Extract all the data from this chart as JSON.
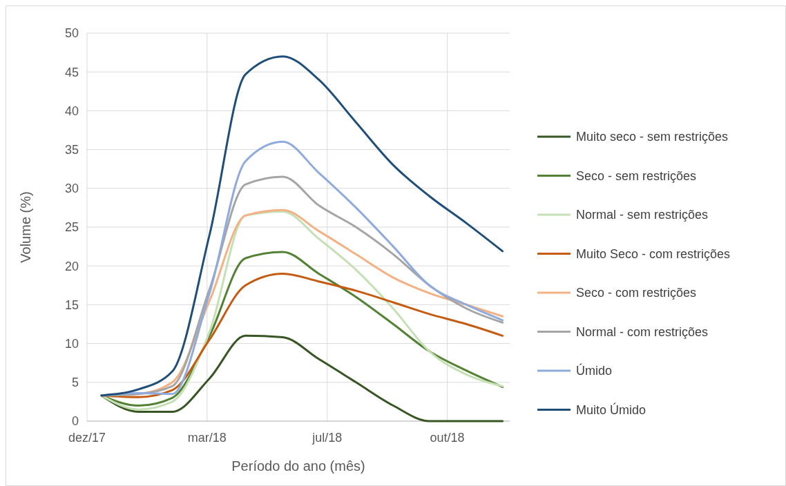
{
  "chart_data": {
    "type": "line",
    "xlabel": "Período do ano (mês)",
    "ylabel": "Volume (%)",
    "x": [
      "2018-01-01",
      "2018-02-01",
      "2018-03-01",
      "2018-04-01",
      "2018-05-01",
      "2018-06-01",
      "2018-07-01",
      "2018-08-01",
      "2018-09-01",
      "2018-10-01",
      "2018-11-01",
      "2018-12-01"
    ],
    "xlim": [
      "2017-12-20",
      "2018-12-07"
    ],
    "xticks": [
      {
        "value": "2017-12-20",
        "label": "dez/17"
      },
      {
        "value": "2018-03-30",
        "label": "mar/18"
      },
      {
        "value": "2018-07-08",
        "label": "jul/18"
      },
      {
        "value": "2018-10-16",
        "label": "out/18"
      }
    ],
    "ylim": [
      0,
      50
    ],
    "yticks": [
      0,
      5,
      10,
      15,
      20,
      25,
      30,
      35,
      40,
      45,
      50
    ],
    "grid": true,
    "legend": "right",
    "marker": "none",
    "line_style": "solid",
    "series": [
      {
        "name": "Muito seco - sem restrições",
        "color": "#375623",
        "values": [
          3.3,
          1.2,
          1.2,
          5.5,
          11,
          10.8,
          8,
          5,
          2,
          0,
          0,
          0
        ]
      },
      {
        "name": "Seco - sem restrições",
        "color": "#548235",
        "values": [
          3.3,
          2,
          3,
          11,
          21,
          21.8,
          19,
          16,
          12.5,
          9,
          6.5,
          4.4
        ]
      },
      {
        "name": "Normal - sem restrições",
        "color": "#c5e0b4",
        "values": [
          3.3,
          1.5,
          2.5,
          11.5,
          26.5,
          27,
          23.5,
          19.5,
          14.5,
          9,
          6,
          4.5
        ]
      },
      {
        "name": "Muito Seco - com restrições",
        "color": "#c55a11",
        "values": [
          3.3,
          3.1,
          4,
          10.5,
          17.5,
          19,
          18,
          16.8,
          15.3,
          13.8,
          12.5,
          11
        ]
      },
      {
        "name": "Seco - com restrições",
        "color": "#f4b183",
        "values": [
          3.3,
          3.5,
          5,
          15.5,
          26.5,
          27.2,
          24.5,
          21.5,
          18.5,
          16.5,
          15,
          13.5
        ]
      },
      {
        "name": "Normal - com restrições",
        "color": "#a5a5a5",
        "values": [
          3.3,
          3.5,
          4.5,
          17,
          30.5,
          31.5,
          27.8,
          25,
          21.5,
          17.5,
          14.5,
          12.7
        ]
      },
      {
        "name": "Úmido",
        "color": "#8faadc",
        "values": [
          3.3,
          3.6,
          3.5,
          16.5,
          33.5,
          36,
          32,
          27.5,
          22.5,
          17.5,
          15,
          13
        ]
      },
      {
        "name": "Muito Úmido",
        "color": "#1f4e79",
        "values": [
          3.3,
          4.1,
          6.4,
          24,
          44.7,
          47,
          44,
          38.5,
          33,
          29,
          25.5,
          21.9
        ]
      }
    ]
  }
}
